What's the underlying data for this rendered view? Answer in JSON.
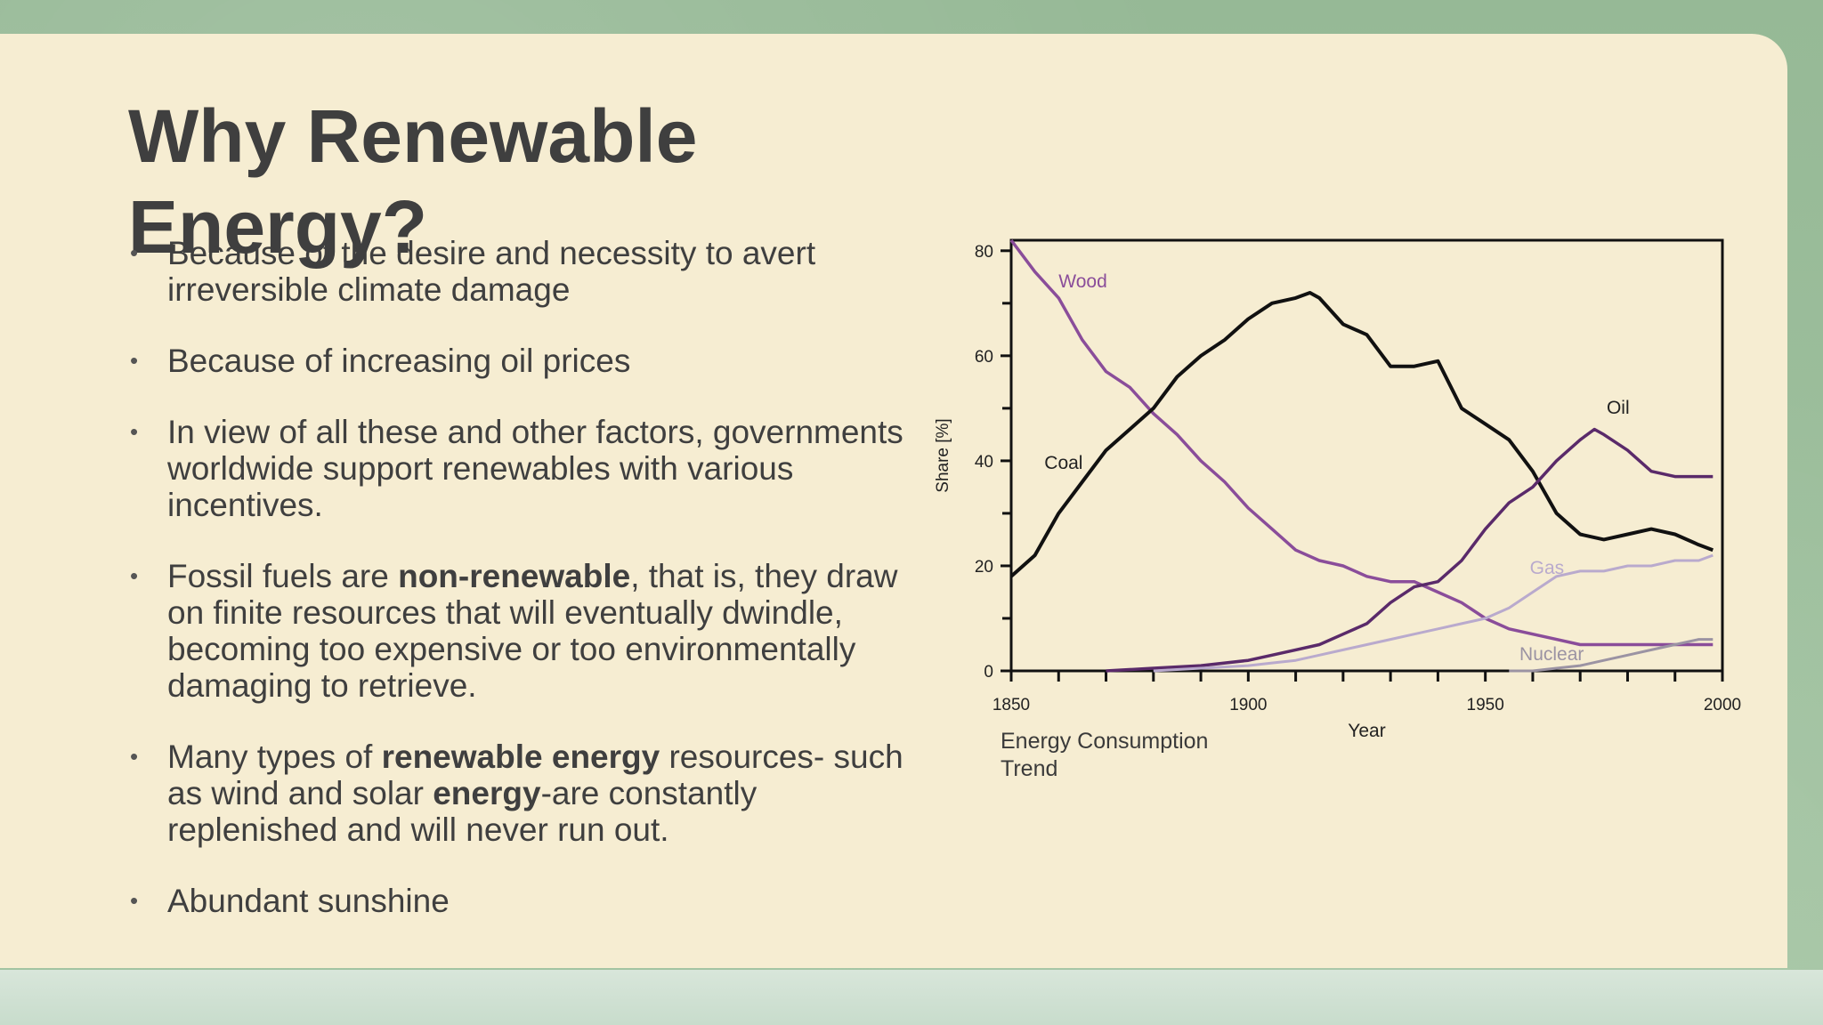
{
  "slide": {
    "title": "Why Renewable Energy?",
    "caption": "Energy Consumption Trend",
    "bullets": [
      {
        "parts": [
          {
            "t": "Because of the desire and necessity to avert  irreversible climate damage",
            "b": false
          }
        ]
      },
      {
        "parts": [
          {
            "t": "Because of increasing oil prices",
            "b": false
          }
        ]
      },
      {
        "parts": [
          {
            "t": "In view of all these and other factors, governments worldwide support renewables with various incentives.",
            "b": false
          }
        ]
      },
      {
        "parts": [
          {
            "t": "Fossil fuels are ",
            "b": false
          },
          {
            "t": "non-renewable",
            "b": true
          },
          {
            "t": ", that is, they draw  on finite resources that will eventually dwindle,  becoming too expensive or too environmentally  damaging to retrieve.",
            "b": false
          }
        ]
      },
      {
        "parts": [
          {
            "t": "Many types of ",
            "b": false
          },
          {
            "t": "renewable energy",
            "b": true
          },
          {
            "t": " resources- such  as wind and solar ",
            "b": false
          },
          {
            "t": "energy",
            "b": true
          },
          {
            "t": "-are constantly replenished and will never run out.",
            "b": false
          }
        ]
      },
      {
        "parts": [
          {
            "t": "Abundant sunshine",
            "b": false
          }
        ]
      }
    ]
  },
  "chart_data": {
    "type": "line",
    "title": "",
    "xlabel": "Year",
    "ylabel": "Share [%]",
    "xlim": [
      1850,
      2000
    ],
    "ylim": [
      0,
      82
    ],
    "xticks": [
      1850,
      1900,
      1950,
      2000
    ],
    "yticks": [
      0,
      20,
      40,
      60,
      80
    ],
    "grid": false,
    "legend": "inline labels",
    "series": [
      {
        "name": "Wood",
        "color": "#8a4d9a",
        "x": [
          1850,
          1855,
          1860,
          1865,
          1870,
          1875,
          1880,
          1885,
          1890,
          1895,
          1900,
          1905,
          1910,
          1915,
          1920,
          1925,
          1930,
          1935,
          1940,
          1945,
          1950,
          1955,
          1960,
          1965,
          1970,
          1975,
          1980,
          1985,
          1990,
          1995,
          1998
        ],
        "y": [
          82,
          76,
          71,
          63,
          57,
          54,
          49,
          45,
          40,
          36,
          31,
          27,
          23,
          21,
          20,
          18,
          17,
          17,
          15,
          13,
          10,
          8,
          7,
          6,
          5,
          5,
          5,
          5,
          5,
          5,
          5
        ]
      },
      {
        "name": "Coal",
        "color": "#111111",
        "x": [
          1850,
          1855,
          1860,
          1865,
          1870,
          1875,
          1880,
          1885,
          1890,
          1895,
          1900,
          1905,
          1910,
          1913,
          1915,
          1920,
          1925,
          1930,
          1935,
          1940,
          1945,
          1950,
          1955,
          1960,
          1965,
          1970,
          1975,
          1980,
          1985,
          1990,
          1995,
          1998
        ],
        "y": [
          18,
          22,
          30,
          36,
          42,
          46,
          50,
          56,
          60,
          63,
          67,
          70,
          71,
          72,
          71,
          66,
          64,
          58,
          58,
          59,
          50,
          47,
          44,
          38,
          30,
          26,
          25,
          26,
          27,
          26,
          24,
          23
        ]
      },
      {
        "name": "Oil",
        "color": "#5a2a6a",
        "x": [
          1870,
          1880,
          1890,
          1900,
          1905,
          1910,
          1915,
          1920,
          1925,
          1930,
          1935,
          1940,
          1945,
          1950,
          1955,
          1960,
          1965,
          1970,
          1973,
          1975,
          1980,
          1985,
          1990,
          1995,
          1998
        ],
        "y": [
          0,
          0.5,
          1,
          2,
          3,
          4,
          5,
          7,
          9,
          13,
          16,
          17,
          21,
          27,
          32,
          35,
          40,
          44,
          46,
          45,
          42,
          38,
          37,
          37,
          37
        ]
      },
      {
        "name": "Gas",
        "color": "#b9aacd",
        "x": [
          1880,
          1890,
          1900,
          1905,
          1910,
          1915,
          1920,
          1925,
          1930,
          1935,
          1940,
          1945,
          1950,
          1955,
          1960,
          1965,
          1970,
          1975,
          1980,
          1985,
          1990,
          1995,
          1998
        ],
        "y": [
          0,
          0.5,
          1,
          1.5,
          2,
          3,
          4,
          5,
          6,
          7,
          8,
          9,
          10,
          12,
          15,
          18,
          19,
          19,
          20,
          20,
          21,
          21,
          22
        ]
      },
      {
        "name": "Nuclear",
        "color": "#9b93a3",
        "x": [
          1955,
          1960,
          1965,
          1970,
          1975,
          1980,
          1985,
          1990,
          1995,
          1998
        ],
        "y": [
          0,
          0,
          0.5,
          1,
          2,
          3,
          4,
          5,
          6,
          6
        ]
      }
    ]
  }
}
